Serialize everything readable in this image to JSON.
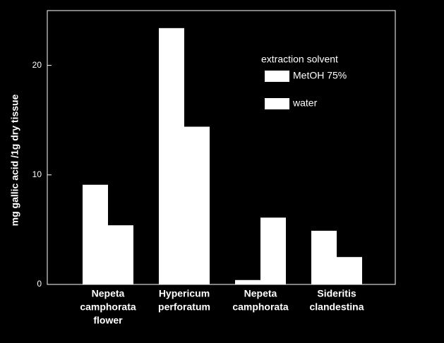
{
  "chart_data": {
    "type": "bar",
    "y_label": "mg gallic acid /1g dry tissue",
    "categories": [
      [
        "Nepeta",
        "camphorata",
        "flower"
      ],
      [
        "Hypericum",
        "perforatum"
      ],
      [
        "Nepeta",
        "camphorata"
      ],
      [
        "Sideritis",
        "clandestina"
      ]
    ],
    "series": [
      {
        "name": "MetOH 75%",
        "color": "#ffffff",
        "values": [
          9.1,
          23.4,
          0.4,
          4.9
        ]
      },
      {
        "name": "water",
        "color": "#ffffff",
        "values": [
          5.4,
          14.4,
          6.1,
          2.5
        ]
      }
    ],
    "legend_title": "extraction solvent",
    "ylim": [
      0,
      25
    ],
    "yticks": [
      0,
      10,
      20
    ],
    "grid": false
  }
}
